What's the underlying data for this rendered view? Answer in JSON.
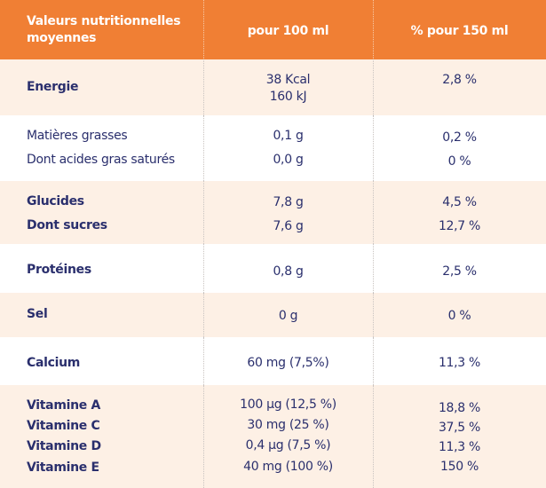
{
  "header": {
    "col0": "Valeurs nutritionnelles moyennes",
    "col1": "pour 100 ml",
    "col2": "% pour 150 ml"
  },
  "rows": {
    "energie": {
      "label": "Energie",
      "per100_line1": "38 Kcal",
      "per100_line2": "160 kJ",
      "pct": "2,8 %"
    },
    "matieres_grasses": {
      "label": "Matières grasses",
      "per100": "0,1 g",
      "pct": "0,2 %"
    },
    "acides_gras": {
      "label": "Dont acides gras saturés",
      "per100": "0,0 g",
      "pct": "0 %"
    },
    "glucides": {
      "label": "Glucides",
      "per100": "7,8 g",
      "pct": "4,5 %"
    },
    "sucres": {
      "label": "Dont sucres",
      "per100": "7,6 g",
      "pct": "12,7 %"
    },
    "proteines": {
      "label": "Protéines",
      "per100": "0,8 g",
      "pct": "2,5 %"
    },
    "sel": {
      "label": "Sel",
      "per100": "0 g",
      "pct": "0 %"
    },
    "calcium": {
      "label": "Calcium",
      "per100": "60 mg (7,5%)",
      "pct": "11,3 %"
    },
    "vitamine_a": {
      "label": "Vitamine A",
      "per100": "100 µg (12,5 %)",
      "pct": "18,8 %"
    },
    "vitamine_c": {
      "label": "Vitamine C",
      "per100": "30 mg (25 %)",
      "pct": "37,5 %"
    },
    "vitamine_d": {
      "label": "Vitamine D",
      "per100": "0,4 µg (7,5 %)",
      "pct": "11,3 %"
    },
    "vitamine_e": {
      "label": "Vitamine E",
      "per100": "40 mg (100 %)",
      "pct": "150 %"
    }
  },
  "colors": {
    "header": "#f07f34",
    "band": "#fdf0e5",
    "text": "#2a2f6d"
  }
}
